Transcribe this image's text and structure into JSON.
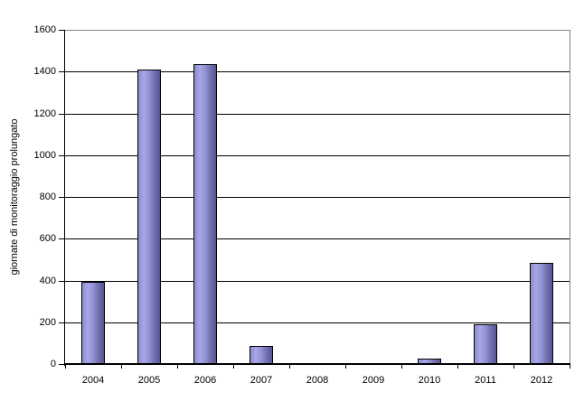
{
  "chart_data": {
    "type": "bar",
    "title": "",
    "categories": [
      "2004",
      "2005",
      "2006",
      "2007",
      "2008",
      "2009",
      "2010",
      "2011",
      "2012"
    ],
    "values": [
      395,
      1410,
      1435,
      85,
      0,
      0,
      25,
      190,
      485
    ],
    "xlabel": "",
    "ylabel": "giornate di monitoraggio prolungato",
    "ylim": [
      0,
      1600
    ],
    "ytick_interval": 200,
    "yticks": [
      0,
      200,
      400,
      600,
      800,
      1000,
      1200,
      1400,
      1600
    ],
    "grid": "horizontal-black-lines",
    "legend": "none",
    "plot_background": "white"
  },
  "colors": {
    "background": "#ffffff",
    "text": "#000000",
    "axis": "#000000",
    "gridline": "#000000",
    "plot_border": "#848484",
    "bar_border": "#000000",
    "bar_gradient": [
      "#8c8cce",
      "#a6a6e8",
      "#9292d4",
      "#7070ae",
      "#565694"
    ]
  }
}
